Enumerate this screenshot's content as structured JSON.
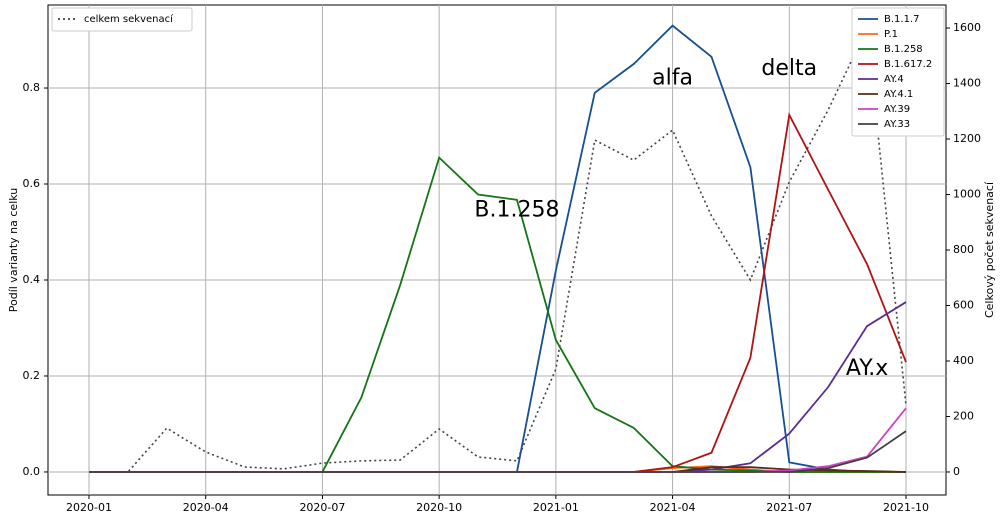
{
  "chart_data": {
    "type": "line",
    "x": [
      "2020-01",
      "2020-02",
      "2020-03",
      "2020-04",
      "2020-05",
      "2020-06",
      "2020-07",
      "2020-08",
      "2020-09",
      "2020-10",
      "2020-11",
      "2020-12",
      "2021-01",
      "2021-02",
      "2021-03",
      "2021-04",
      "2021-05",
      "2021-06",
      "2021-07",
      "2021-08",
      "2021-09",
      "2021-10"
    ],
    "xticks": [
      "2020-01",
      "2020-04",
      "2020-07",
      "2020-10",
      "2021-01",
      "2021-04",
      "2021-07",
      "2021-10"
    ],
    "ylabel": "Podíl varianty na celku",
    "y2label": "Celkový počet sekvenací",
    "ylim": [
      -0.048,
      0.973
    ],
    "yticks": [
      {
        "value": 0,
        "label": "0.0"
      },
      0.2,
      0.4,
      0.6,
      0.8
    ],
    "y2lim": [
      -83,
      1683
    ],
    "y2ticks": [
      0,
      200,
      400,
      600,
      800,
      1000,
      1200,
      1400,
      1600
    ],
    "grid": true,
    "legend": "upper right",
    "legend2": "upper left",
    "series": [
      {
        "name": "celkem sekvenací",
        "color": "#444444",
        "axis": "y2",
        "style": "dotted",
        "values": [
          0,
          0,
          158,
          72,
          18,
          11,
          32,
          40,
          43,
          155,
          54,
          40,
          371,
          1196,
          1124,
          1232,
          923,
          692,
          1045,
          1305,
          1600,
          241
        ]
      },
      {
        "name": "B.1.1.7",
        "color": "#174f8f",
        "values": [
          0,
          0,
          0,
          0,
          0,
          0,
          0,
          0,
          0,
          0,
          0,
          0,
          0.42,
          0.79,
          0.85,
          0.93,
          0.865,
          0.635,
          0.02,
          0.005,
          0,
          0
        ]
      },
      {
        "name": "P.1",
        "color": "#ff6a14",
        "values": [
          0,
          0,
          0,
          0,
          0,
          0,
          0,
          0,
          0,
          0,
          0,
          0,
          0,
          0,
          0,
          0.008,
          0.012,
          0.005,
          0,
          0,
          0,
          0
        ]
      },
      {
        "name": "B.1.258",
        "color": "#167316",
        "values": [
          0,
          0,
          0,
          0,
          0,
          0,
          0,
          0.155,
          0.39,
          0.655,
          0.578,
          0.567,
          0.275,
          0.133,
          0.092,
          0.012,
          0.005,
          0.003,
          0,
          0,
          0,
          0
        ]
      },
      {
        "name": "B.1.617.2",
        "color": "#b01313",
        "values": [
          0,
          0,
          0,
          0,
          0,
          0,
          0,
          0,
          0,
          0,
          0,
          0,
          0,
          0,
          0,
          0.01,
          0.04,
          0.238,
          0.744,
          0.588,
          0.433,
          0.229
        ]
      },
      {
        "name": "AY.4",
        "color": "#5b2d93",
        "values": [
          0,
          0,
          0,
          0,
          0,
          0,
          0,
          0,
          0,
          0,
          0,
          0,
          0,
          0,
          0,
          0,
          0.005,
          0.018,
          0.08,
          0.177,
          0.304,
          0.354
        ]
      },
      {
        "name": "AY.4.1",
        "color": "#5a2a1a",
        "values": [
          0,
          0,
          0,
          0,
          0,
          0,
          0,
          0,
          0,
          0,
          0,
          0,
          0,
          0,
          0,
          0,
          0.01,
          0.01,
          0.005,
          0.003,
          0.002,
          0
        ]
      },
      {
        "name": "AY.39",
        "color": "#d33fc3",
        "values": [
          0,
          0,
          0,
          0,
          0,
          0,
          0,
          0,
          0,
          0,
          0,
          0,
          0,
          0,
          0,
          0,
          0,
          0,
          0.003,
          0.012,
          0.032,
          0.133
        ]
      },
      {
        "name": "AY.33",
        "color": "#404040",
        "values": [
          0,
          0,
          0,
          0,
          0,
          0,
          0,
          0,
          0,
          0,
          0,
          0,
          0,
          0,
          0,
          0,
          0,
          0,
          0,
          0.008,
          0.03,
          0.085
        ]
      }
    ],
    "annotations": [
      {
        "text": "alfa",
        "color": "#1f5a9a",
        "x": "2021-04",
        "y": 0.82
      },
      {
        "text": "delta",
        "color": "#cc4b4b",
        "x": "2021-07",
        "y": 0.84
      },
      {
        "text": "B.1.258",
        "color": "#167316",
        "x": "2020-12",
        "y": 0.545
      },
      {
        "text": "AY.x",
        "color": "#9b3fd9",
        "x": "2021-09",
        "y": 0.215
      }
    ]
  }
}
